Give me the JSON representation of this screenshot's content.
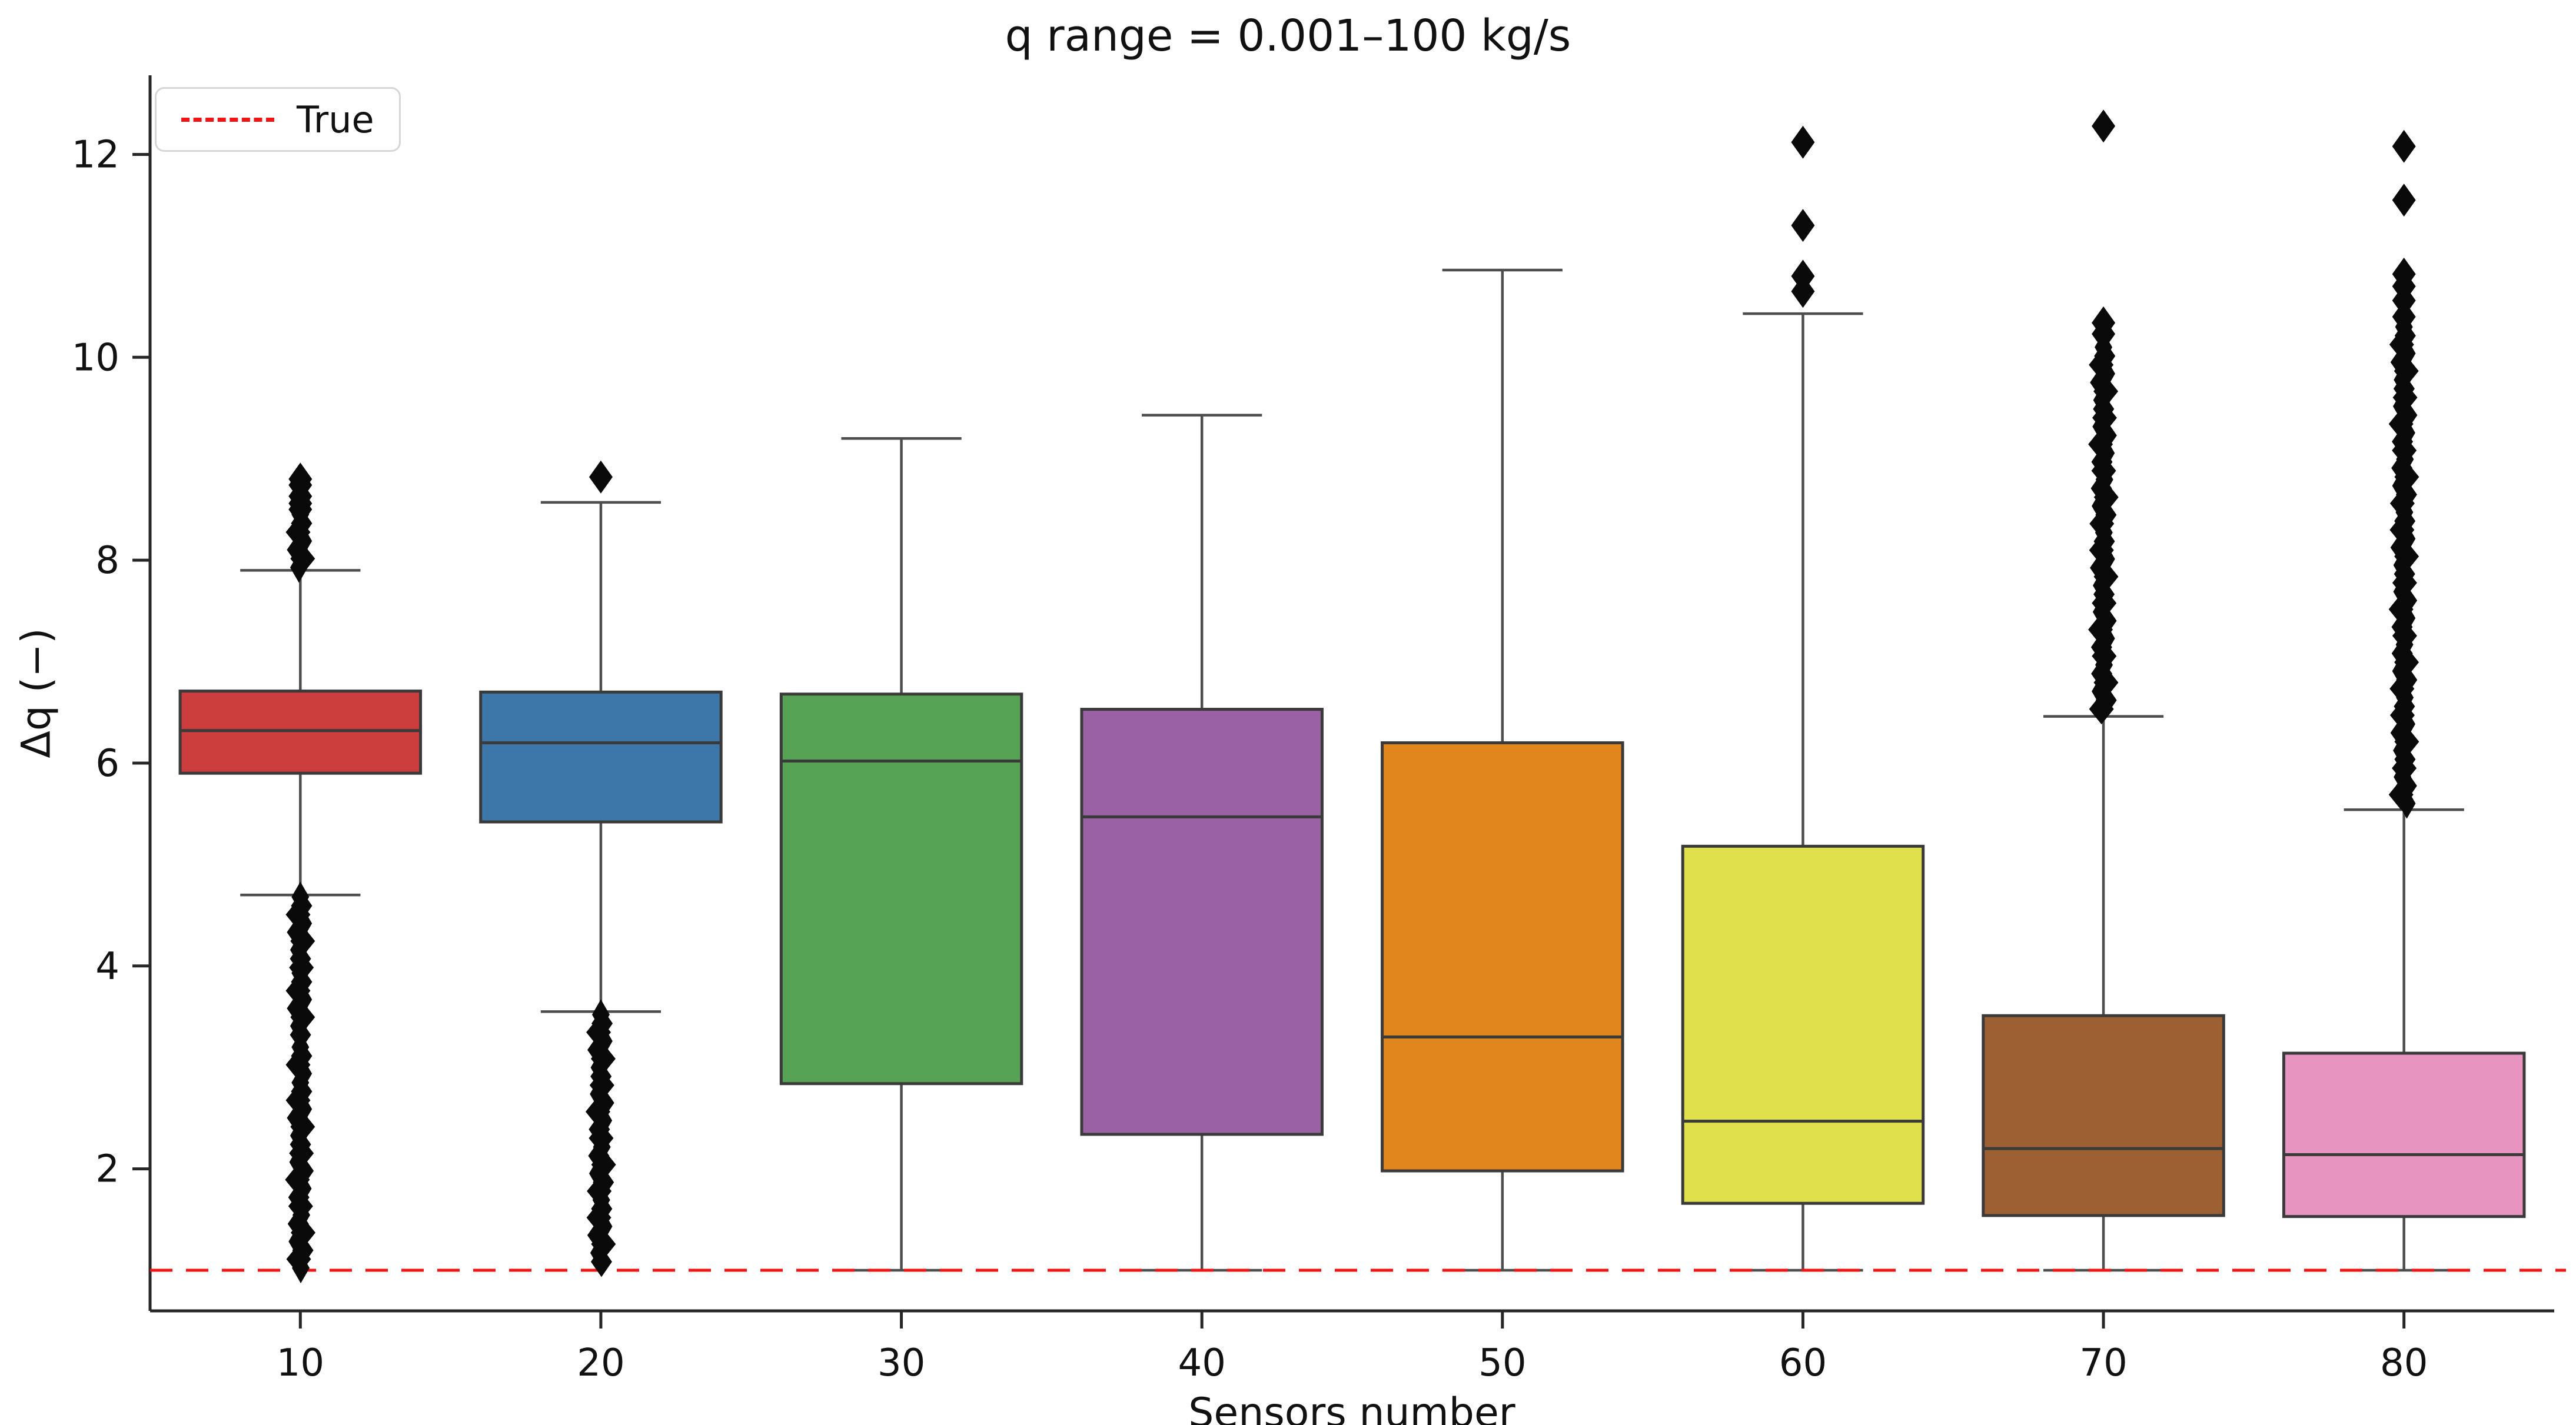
{
  "header": {
    "title": "q range = 0.001–100 kg/s"
  },
  "legend": {
    "items": [
      {
        "label": "True",
        "swatch": "red-dashed-line",
        "color": "#f01414"
      }
    ]
  },
  "chart_data": {
    "type": "boxplot",
    "title": "q range = 0.001–100 kg/s",
    "xlabel": "Sensors number",
    "ylabel": "Δq (−)",
    "categories": [
      "10",
      "20",
      "30",
      "40",
      "50",
      "60",
      "70",
      "80"
    ],
    "yticks": [
      2,
      4,
      6,
      8,
      10,
      12
    ],
    "ylim": [
      0.6,
      12.78
    ],
    "grid": false,
    "legend_position": "upper-left",
    "reference_line": {
      "label": "True",
      "y": 1.0,
      "color": "#f01414",
      "style": "dashed"
    },
    "style": {
      "box_edge": "#3a3a3a",
      "whisker": "#4d4d4d",
      "outlier": "#0a0a0a",
      "axis": "#262626"
    },
    "boxes": [
      {
        "category": "10",
        "color": "#cc3d3d",
        "whisker_low": 4.7,
        "q1": 5.9,
        "median": 6.32,
        "q3": 6.71,
        "whisker_high": 7.9,
        "outlier_points_above": [
          8.5,
          8.56,
          8.63,
          8.74,
          8.8
        ],
        "dense_outliers_above": [
          [
            7.92,
            8.45
          ]
        ],
        "outlier_points_below": [],
        "dense_outliers_below": [
          [
            1.0,
            2.85
          ],
          [
            2.86,
            3.2
          ],
          [
            3.25,
            3.93
          ],
          [
            3.95,
            4.68
          ]
        ]
      },
      {
        "category": "20",
        "color": "#3d76a8",
        "whisker_low": 3.55,
        "q1": 5.42,
        "median": 6.2,
        "q3": 6.7,
        "whisker_high": 8.57,
        "outlier_points_above": [
          8.82
        ],
        "dense_outliers_above": [],
        "outlier_points_below": [],
        "dense_outliers_below": [
          [
            1.0,
            3.52
          ]
        ]
      },
      {
        "category": "30",
        "color": "#56a356",
        "whisker_low": 1.0,
        "q1": 2.84,
        "median": 6.02,
        "q3": 6.68,
        "whisker_high": 9.2,
        "outlier_points_above": [],
        "dense_outliers_above": [],
        "outlier_points_below": [],
        "dense_outliers_below": []
      },
      {
        "category": "40",
        "color": "#9a62a5",
        "whisker_low": 1.0,
        "q1": 2.34,
        "median": 5.47,
        "q3": 6.53,
        "whisker_high": 9.43,
        "outlier_points_above": [],
        "dense_outliers_above": [],
        "outlier_points_below": [],
        "dense_outliers_below": []
      },
      {
        "category": "50",
        "color": "#e1861d",
        "whisker_low": 1.0,
        "q1": 1.98,
        "median": 3.3,
        "q3": 6.2,
        "whisker_high": 10.86,
        "outlier_points_above": [],
        "dense_outliers_above": [],
        "outlier_points_below": [],
        "dense_outliers_below": []
      },
      {
        "category": "60",
        "color": "#dfe04b",
        "whisker_low": 1.0,
        "q1": 1.66,
        "median": 2.47,
        "q3": 5.18,
        "whisker_high": 10.43,
        "outlier_points_above": [
          10.65,
          10.8,
          11.3,
          12.12
        ],
        "dense_outliers_above": [],
        "outlier_points_below": [],
        "dense_outliers_below": []
      },
      {
        "category": "70",
        "color": "#9d6033",
        "whisker_low": 1.0,
        "q1": 1.54,
        "median": 2.2,
        "q3": 3.51,
        "whisker_high": 6.46,
        "outlier_points_above": [
          10.23,
          10.34,
          12.28
        ],
        "dense_outliers_above": [
          [
            6.5,
            10.1
          ]
        ],
        "outlier_points_below": [],
        "dense_outliers_below": []
      },
      {
        "category": "80",
        "color": "#e794c1",
        "whisker_low": 1.0,
        "q1": 1.53,
        "median": 2.14,
        "q3": 3.14,
        "whisker_high": 5.54,
        "outlier_points_above": [
          10.4,
          10.56,
          10.7,
          10.82,
          11.55,
          12.08
        ],
        "dense_outliers_above": [
          [
            5.6,
            10.3
          ]
        ],
        "outlier_points_below": [],
        "dense_outliers_below": []
      }
    ]
  }
}
